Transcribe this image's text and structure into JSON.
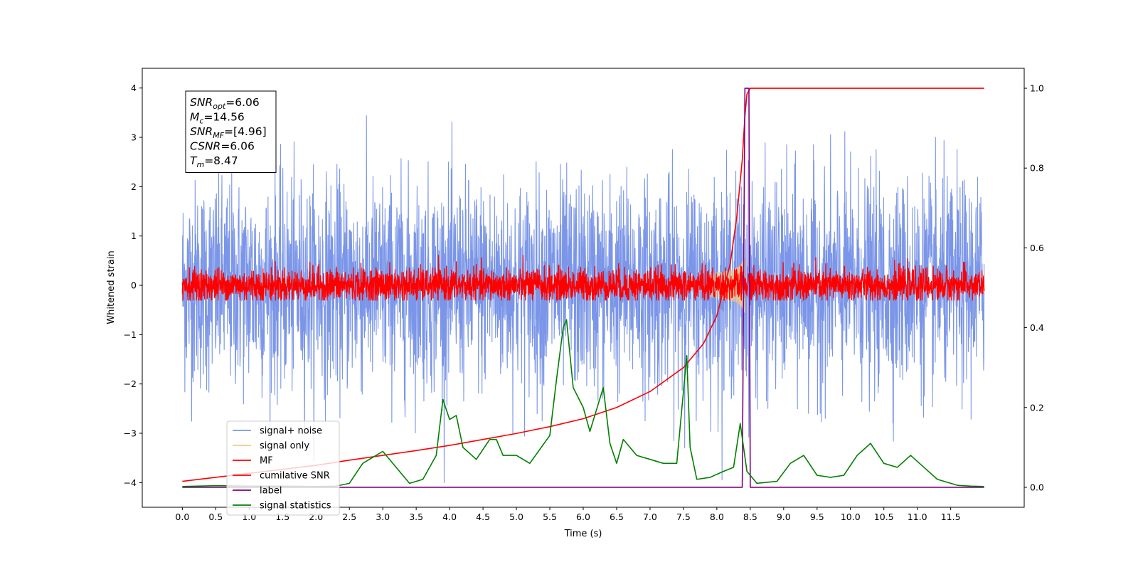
{
  "chart_data": {
    "type": "line",
    "title": "",
    "xlabel": "Time (s)",
    "ylabel": "Whitened strain",
    "xlim": [
      -0.6,
      12.6
    ],
    "ylim": [
      -4.5,
      4.4
    ],
    "y2lim": [
      -0.05,
      1.05
    ],
    "xticks": [
      "0.0",
      "0.5",
      "1.0",
      "1.5",
      "2.0",
      "2.5",
      "3.0",
      "3.5",
      "4.0",
      "4.5",
      "5.0",
      "5.5",
      "6.0",
      "6.5",
      "7.0",
      "7.5",
      "8.0",
      "8.5",
      "9.0",
      "9.5",
      "10.0",
      "10.5",
      "11.0",
      "11.5"
    ],
    "yticks": [
      "4",
      "3",
      "2",
      "1",
      "0",
      "−1",
      "−2",
      "−3",
      "−4"
    ],
    "y2ticks": [
      "1.0",
      "0.8",
      "0.6",
      "0.4",
      "0.2",
      "0.0"
    ],
    "grid": false,
    "legend_position": "lower-left",
    "info_box": {
      "lines": [
        {
          "sym": "SNR",
          "sub": "opt",
          "val": "=6.06"
        },
        {
          "sym": "M",
          "sub": "c",
          "val": "=14.56"
        },
        {
          "sym": "SNR",
          "sub": "MF",
          "val": "=[4.96]"
        },
        {
          "sym": "CSNR",
          "sub": "",
          "val": "=6.06"
        },
        {
          "sym": "T",
          "sub": "m",
          "val": "=8.47"
        }
      ]
    },
    "series": [
      {
        "name": "signal+ noise",
        "axis": "left",
        "color": "#7b96e8",
        "style": "noise",
        "x_range": [
          0,
          12
        ],
        "std": 1.05,
        "clip": [
          -4.0,
          4.0
        ]
      },
      {
        "name": "signal only",
        "axis": "left",
        "color": "#f5c98a",
        "style": "chirp",
        "merger_time": 8.42,
        "peak_amplitude": 0.55
      },
      {
        "name": "MF",
        "axis": "left",
        "color": "#ff0000",
        "style": "noise",
        "x_range": [
          0,
          12
        ],
        "std": 0.17,
        "clip": [
          -0.3,
          0.95
        ]
      },
      {
        "name": "cumilative SNR",
        "axis": "right",
        "color": "#ff0000",
        "style": "line",
        "x": [
          0,
          0.5,
          1,
          1.5,
          2,
          2.5,
          3,
          3.5,
          4,
          4.5,
          5,
          5.5,
          6,
          6.5,
          7,
          7.5,
          7.8,
          8.0,
          8.2,
          8.3,
          8.38,
          8.42,
          8.45,
          8.5,
          12.0
        ],
        "y": [
          0.015,
          0.025,
          0.035,
          0.045,
          0.055,
          0.068,
          0.08,
          0.092,
          0.105,
          0.12,
          0.135,
          0.152,
          0.172,
          0.2,
          0.24,
          0.3,
          0.36,
          0.43,
          0.56,
          0.68,
          0.82,
          0.93,
          0.985,
          1.0,
          1.0
        ]
      },
      {
        "name": "label",
        "axis": "right",
        "color": "#800080",
        "style": "line",
        "x": [
          0,
          8.38,
          8.42,
          8.48,
          8.5,
          12.0
        ],
        "y": [
          0,
          0,
          1.0,
          1.0,
          0,
          0
        ]
      },
      {
        "name": "signal statistics",
        "axis": "right",
        "color": "#008000",
        "style": "line",
        "x": [
          0,
          0.5,
          1,
          1.5,
          2,
          2.3,
          2.5,
          2.7,
          2.9,
          3.0,
          3.2,
          3.4,
          3.6,
          3.8,
          3.9,
          4.0,
          4.1,
          4.2,
          4.4,
          4.6,
          4.7,
          4.8,
          5.0,
          5.2,
          5.5,
          5.6,
          5.7,
          5.75,
          5.85,
          6.0,
          6.1,
          6.3,
          6.4,
          6.5,
          6.6,
          6.8,
          7.0,
          7.2,
          7.4,
          7.55,
          7.6,
          7.7,
          7.9,
          8.1,
          8.25,
          8.35,
          8.45,
          8.6,
          8.9,
          9.1,
          9.3,
          9.5,
          9.7,
          9.9,
          10.1,
          10.3,
          10.5,
          10.7,
          10.9,
          11.1,
          11.3,
          11.6,
          11.8,
          12.0
        ],
        "y": [
          0.002,
          0.004,
          0.003,
          0.003,
          0.002,
          0.003,
          0.01,
          0.06,
          0.08,
          0.09,
          0.05,
          0.01,
          0.02,
          0.08,
          0.22,
          0.17,
          0.18,
          0.1,
          0.07,
          0.12,
          0.12,
          0.08,
          0.08,
          0.06,
          0.13,
          0.27,
          0.4,
          0.42,
          0.25,
          0.2,
          0.14,
          0.25,
          0.11,
          0.06,
          0.12,
          0.08,
          0.07,
          0.06,
          0.06,
          0.33,
          0.1,
          0.02,
          0.025,
          0.04,
          0.05,
          0.16,
          0.04,
          0.01,
          0.015,
          0.06,
          0.08,
          0.03,
          0.025,
          0.03,
          0.08,
          0.11,
          0.06,
          0.05,
          0.08,
          0.05,
          0.02,
          0.005,
          0.003,
          0.002
        ]
      }
    ]
  }
}
